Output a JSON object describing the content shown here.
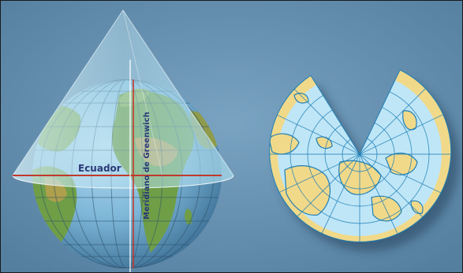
{
  "figure": {
    "equator_label": "Ecuador",
    "meridian_label": "Meridiano de Greenwich"
  },
  "colors": {
    "background": "#6a93b3",
    "cone": "#bfe6f3",
    "globe_ocean": "#7db6d8",
    "globe_land": "#6f9e47",
    "desert": "#c9a14f",
    "label": "#2a3a78",
    "equator_line": "#c0392b",
    "map_ocean": "#bfe6f7",
    "map_land": "#f1d98a",
    "map_coast": "#1f7fb5"
  }
}
